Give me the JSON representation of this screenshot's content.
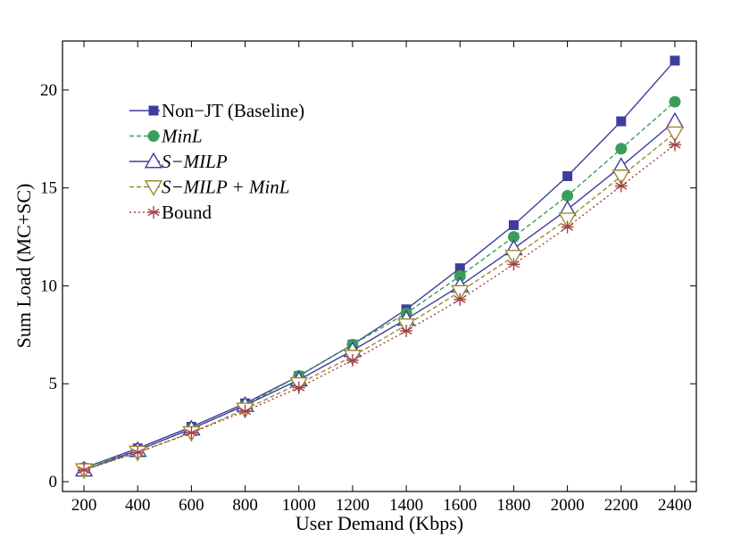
{
  "chart_data": {
    "type": "line",
    "xlabel": "User Demand (Kbps)",
    "ylabel": "Sum Load (MC+SC)",
    "x": [
      200,
      400,
      600,
      800,
      1000,
      1200,
      1400,
      1600,
      1800,
      2000,
      2200,
      2400
    ],
    "xlim": [
      120,
      2480
    ],
    "ylim": [
      -0.5,
      22.5
    ],
    "xticks": [
      "200",
      "400",
      "600",
      "800",
      "1000",
      "1200",
      "1400",
      "1600",
      "1800",
      "2000",
      "2200",
      "2400"
    ],
    "yticks": [
      "0",
      "5",
      "10",
      "15",
      "20"
    ],
    "grid": false,
    "legend_position": "top-left",
    "series": [
      {
        "name": "Non−JT (Baseline)",
        "italic": false,
        "color": "#3f3d9c",
        "marker": "square",
        "dash": "solid",
        "values": [
          0.7,
          1.7,
          2.8,
          4.0,
          5.4,
          7.0,
          8.8,
          10.9,
          13.1,
          15.6,
          18.4,
          21.5
        ]
      },
      {
        "name": "MinL",
        "italic": true,
        "color": "#3a9e5a",
        "marker": "circle",
        "dash": "dashed",
        "values": [
          0.7,
          1.6,
          2.7,
          3.9,
          5.4,
          7.0,
          8.6,
          10.5,
          12.5,
          14.6,
          17.0,
          19.4
        ]
      },
      {
        "name": "S−MILP",
        "italic": true,
        "color": "#3f3d9c",
        "marker": "triangle-up",
        "dash": "solid",
        "values": [
          0.6,
          1.6,
          2.7,
          3.9,
          5.2,
          6.7,
          8.3,
          10.0,
          11.9,
          13.9,
          16.1,
          18.4
        ]
      },
      {
        "name": "S−MILP + MinL",
        "italic": true,
        "color": "#9d8a2e",
        "marker": "triangle-down",
        "dash": "dashed",
        "values": [
          0.6,
          1.5,
          2.5,
          3.7,
          5.0,
          6.4,
          8.0,
          9.7,
          11.5,
          13.4,
          15.6,
          17.8
        ]
      },
      {
        "name": "Bound",
        "italic": false,
        "color": "#a0404a",
        "marker": "asterisk",
        "dash": "dotted",
        "values": [
          0.6,
          1.5,
          2.5,
          3.6,
          4.8,
          6.2,
          7.7,
          9.3,
          11.1,
          13.0,
          15.1,
          17.2
        ]
      }
    ]
  }
}
